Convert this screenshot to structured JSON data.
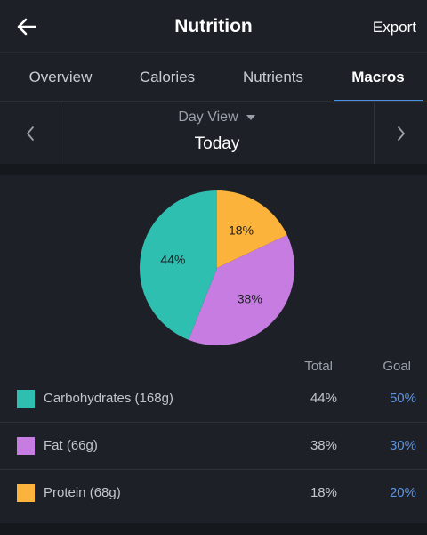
{
  "header": {
    "title": "Nutrition",
    "export_label": "Export"
  },
  "tabs": [
    {
      "label": "Overview",
      "active": false
    },
    {
      "label": "Calories",
      "active": false
    },
    {
      "label": "Nutrients",
      "active": false
    },
    {
      "label": "Macros",
      "active": true
    }
  ],
  "day_selector": {
    "view_label": "Day View",
    "day_label": "Today"
  },
  "chart_data": {
    "type": "pie",
    "labels": [
      "Carbohydrates (168g)",
      "Fat (66g)",
      "Protein (68g)"
    ],
    "values": [
      44,
      38,
      18
    ],
    "slice_labels": [
      "44%",
      "38%",
      "18%"
    ],
    "colors": [
      "#2fbfb0",
      "#c67ce0",
      "#fbb33c"
    ]
  },
  "table": {
    "col_total": "Total",
    "col_goal": "Goal",
    "rows": [
      {
        "name": "Carbohydrates (168g)",
        "total": "44%",
        "goal": "50%",
        "color": "#2fbfb0"
      },
      {
        "name": "Fat (66g)",
        "total": "38%",
        "goal": "30%",
        "color": "#c67ce0"
      },
      {
        "name": "Protein (68g)",
        "total": "18%",
        "goal": "20%",
        "color": "#fbb33c"
      }
    ]
  },
  "colors": {
    "accent": "#4a8fe3",
    "goal_text": "#5b93e6",
    "background": "#1d2127"
  }
}
